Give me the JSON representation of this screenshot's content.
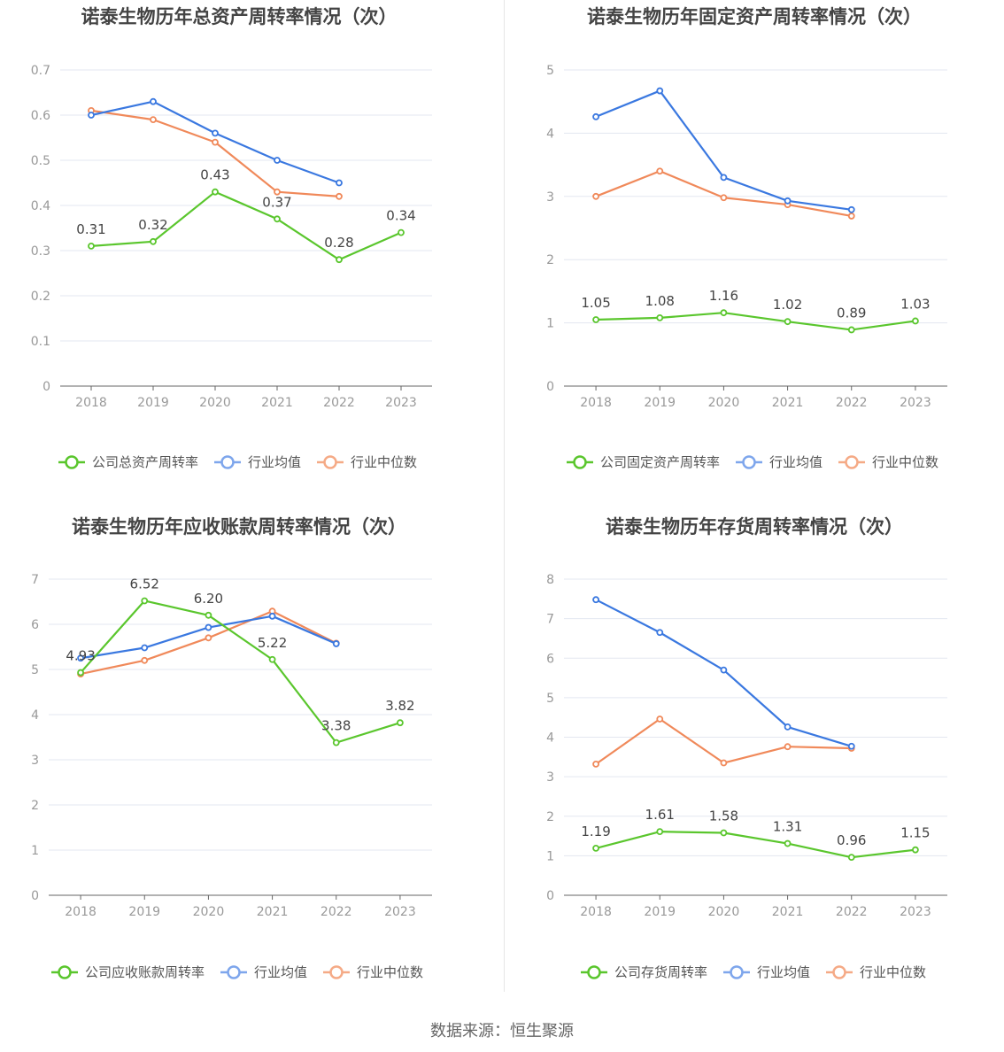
{
  "source": "数据来源：恒生聚源",
  "colors": {
    "company": "#5ac62d",
    "average": "#3a78e0",
    "median": "#f0895a",
    "grid": "#e3e7f0",
    "axis": "#666666",
    "tick": "#999999",
    "title": "#444444"
  },
  "chart_data": [
    {
      "type": "line",
      "title": "诺泰生物历年总资产周转率情况（次）",
      "categories": [
        "2018",
        "2019",
        "2020",
        "2021",
        "2022",
        "2023"
      ],
      "ylim": [
        0,
        0.7
      ],
      "yticks": [
        "0",
        "0.1",
        "0.2",
        "0.3",
        "0.4",
        "0.5",
        "0.6",
        "0.7"
      ],
      "series": [
        {
          "name": "公司总资产周转率",
          "values": [
            0.31,
            0.32,
            0.43,
            0.37,
            0.28,
            0.34
          ],
          "labels": [
            "0.31",
            "0.32",
            "0.43",
            "0.37",
            "0.28",
            "0.34"
          ]
        },
        {
          "name": "行业均值",
          "values": [
            0.6,
            0.63,
            0.56,
            0.5,
            0.45,
            null
          ]
        },
        {
          "name": "行业中位数",
          "values": [
            0.61,
            0.59,
            0.54,
            0.43,
            0.42,
            null
          ]
        }
      ]
    },
    {
      "type": "line",
      "title": "诺泰生物历年固定资产周转率情况（次）",
      "categories": [
        "2018",
        "2019",
        "2020",
        "2021",
        "2022",
        "2023"
      ],
      "ylim": [
        0,
        5
      ],
      "yticks": [
        "0",
        "1",
        "2",
        "3",
        "4",
        "5"
      ],
      "series": [
        {
          "name": "公司固定资产周转率",
          "values": [
            1.05,
            1.08,
            1.16,
            1.02,
            0.89,
            1.03
          ],
          "labels": [
            "1.05",
            "1.08",
            "1.16",
            "1.02",
            "0.89",
            "1.03"
          ]
        },
        {
          "name": "行业均值",
          "values": [
            4.26,
            4.67,
            3.3,
            2.93,
            2.79,
            null
          ]
        },
        {
          "name": "行业中位数",
          "values": [
            3.0,
            3.4,
            2.98,
            2.87,
            2.69,
            null
          ]
        }
      ]
    },
    {
      "type": "line",
      "title": "诺泰生物历年应收账款周转率情况（次）",
      "categories": [
        "2018",
        "2019",
        "2020",
        "2021",
        "2022",
        "2023"
      ],
      "ylim": [
        0,
        7
      ],
      "yticks": [
        "0",
        "1",
        "2",
        "3",
        "4",
        "5",
        "6",
        "7"
      ],
      "series": [
        {
          "name": "公司应收账款周转率",
          "values": [
            4.93,
            6.52,
            6.2,
            5.22,
            3.38,
            3.82
          ],
          "labels": [
            "4.93",
            "6.52",
            "6.20",
            "5.22",
            "3.38",
            "3.82"
          ]
        },
        {
          "name": "行业均值",
          "values": [
            5.25,
            5.48,
            5.93,
            6.18,
            5.57,
            null
          ]
        },
        {
          "name": "行业中位数",
          "values": [
            4.9,
            5.2,
            5.7,
            6.29,
            5.58,
            null
          ]
        }
      ]
    },
    {
      "type": "line",
      "title": "诺泰生物历年存货周转率情况（次）",
      "categories": [
        "2018",
        "2019",
        "2020",
        "2021",
        "2022",
        "2023"
      ],
      "ylim": [
        0,
        8
      ],
      "yticks": [
        "0",
        "1",
        "2",
        "3",
        "4",
        "5",
        "6",
        "7",
        "8"
      ],
      "series": [
        {
          "name": "公司存货周转率",
          "values": [
            1.19,
            1.61,
            1.58,
            1.31,
            0.96,
            1.15
          ],
          "labels": [
            "1.19",
            "1.61",
            "1.58",
            "1.31",
            "0.96",
            "1.15"
          ]
        },
        {
          "name": "行业均值",
          "values": [
            7.48,
            6.65,
            5.7,
            4.26,
            3.77,
            null
          ]
        },
        {
          "name": "行业中位数",
          "values": [
            3.32,
            4.46,
            3.35,
            3.76,
            3.72,
            null
          ]
        }
      ]
    }
  ]
}
